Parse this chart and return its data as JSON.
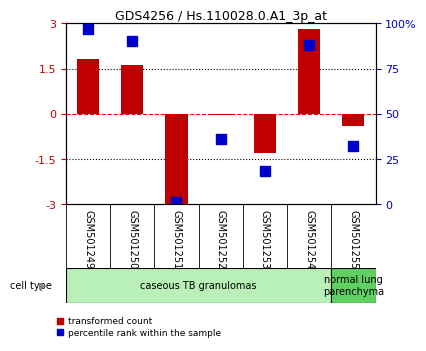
{
  "title": "GDS4256 / Hs.110028.0.A1_3p_at",
  "samples": [
    "GSM501249",
    "GSM501250",
    "GSM501251",
    "GSM501252",
    "GSM501253",
    "GSM501254",
    "GSM501255"
  ],
  "transformed_counts": [
    1.8,
    1.6,
    -3.0,
    -0.05,
    -1.3,
    2.8,
    -0.4
  ],
  "percentile_ranks": [
    97,
    90,
    1,
    36,
    18,
    88,
    32
  ],
  "ylim_left": [
    -3,
    3
  ],
  "ylim_right": [
    0,
    100
  ],
  "yticks_left": [
    -3,
    -1.5,
    0,
    1.5,
    3
  ],
  "yticks_right": [
    0,
    25,
    50,
    75,
    100
  ],
  "ytick_labels_right": [
    "0",
    "25",
    "50",
    "75",
    "100%"
  ],
  "bar_color": "#c00000",
  "dot_color": "#0000cc",
  "bar_width": 0.5,
  "dot_size": 45,
  "cell_type_group_labels": [
    "caseous TB granulomas",
    "normal lung\nparenchyma"
  ],
  "cell_type_group_colors": [
    "#b8f0b8",
    "#60d060"
  ],
  "cell_type_group_sample_counts": [
    6,
    1
  ],
  "legend_labels": [
    "transformed count",
    "percentile rank within the sample"
  ],
  "legend_colors": [
    "#c00000",
    "#0000cc"
  ],
  "cell_type_label": "cell type",
  "background_color": "#ffffff",
  "label_area_color": "#c8c8c8",
  "title_fontsize": 9,
  "axis_fontsize": 8,
  "label_fontsize": 7
}
